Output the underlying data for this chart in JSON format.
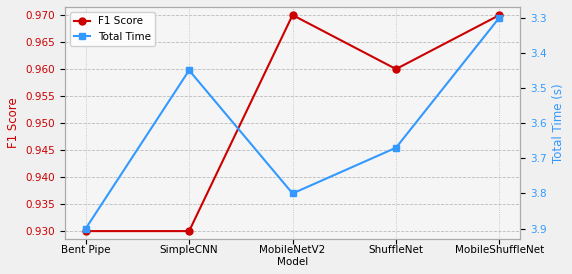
{
  "models": [
    "Bent Pipe",
    "SimpleCNN",
    "MobileNetV2",
    "ShuffleNet",
    "MobileShuffleNet"
  ],
  "f1_scores": [
    0.93,
    0.93,
    0.97,
    0.96,
    0.97
  ],
  "total_times": [
    3.9,
    3.45,
    3.8,
    3.67,
    3.3
  ],
  "f1_color": "#cc0000",
  "time_color": "#3399ff",
  "f1_ylim": [
    0.9285,
    0.9715
  ],
  "time_ylim": [
    3.93,
    3.27
  ],
  "f1_yticks": [
    0.93,
    0.935,
    0.94,
    0.945,
    0.95,
    0.955,
    0.96,
    0.965,
    0.97
  ],
  "time_yticks": [
    3.3,
    3.4,
    3.5,
    3.6,
    3.7,
    3.8,
    3.9
  ],
  "xlabel": "Model",
  "ylabel_left": "F1 Score",
  "ylabel_right": "Total Time (s)",
  "legend_f1": "F1 Score",
  "legend_time": "Total Time",
  "figsize": [
    5.72,
    2.74
  ],
  "dpi": 100,
  "background_color": "#f0f0f0",
  "plot_bg_color": "#f5f5f5",
  "grid_color": "#bbbbbb",
  "marker_f1": "o",
  "marker_time": "s",
  "linewidth": 1.5,
  "markersize": 5
}
